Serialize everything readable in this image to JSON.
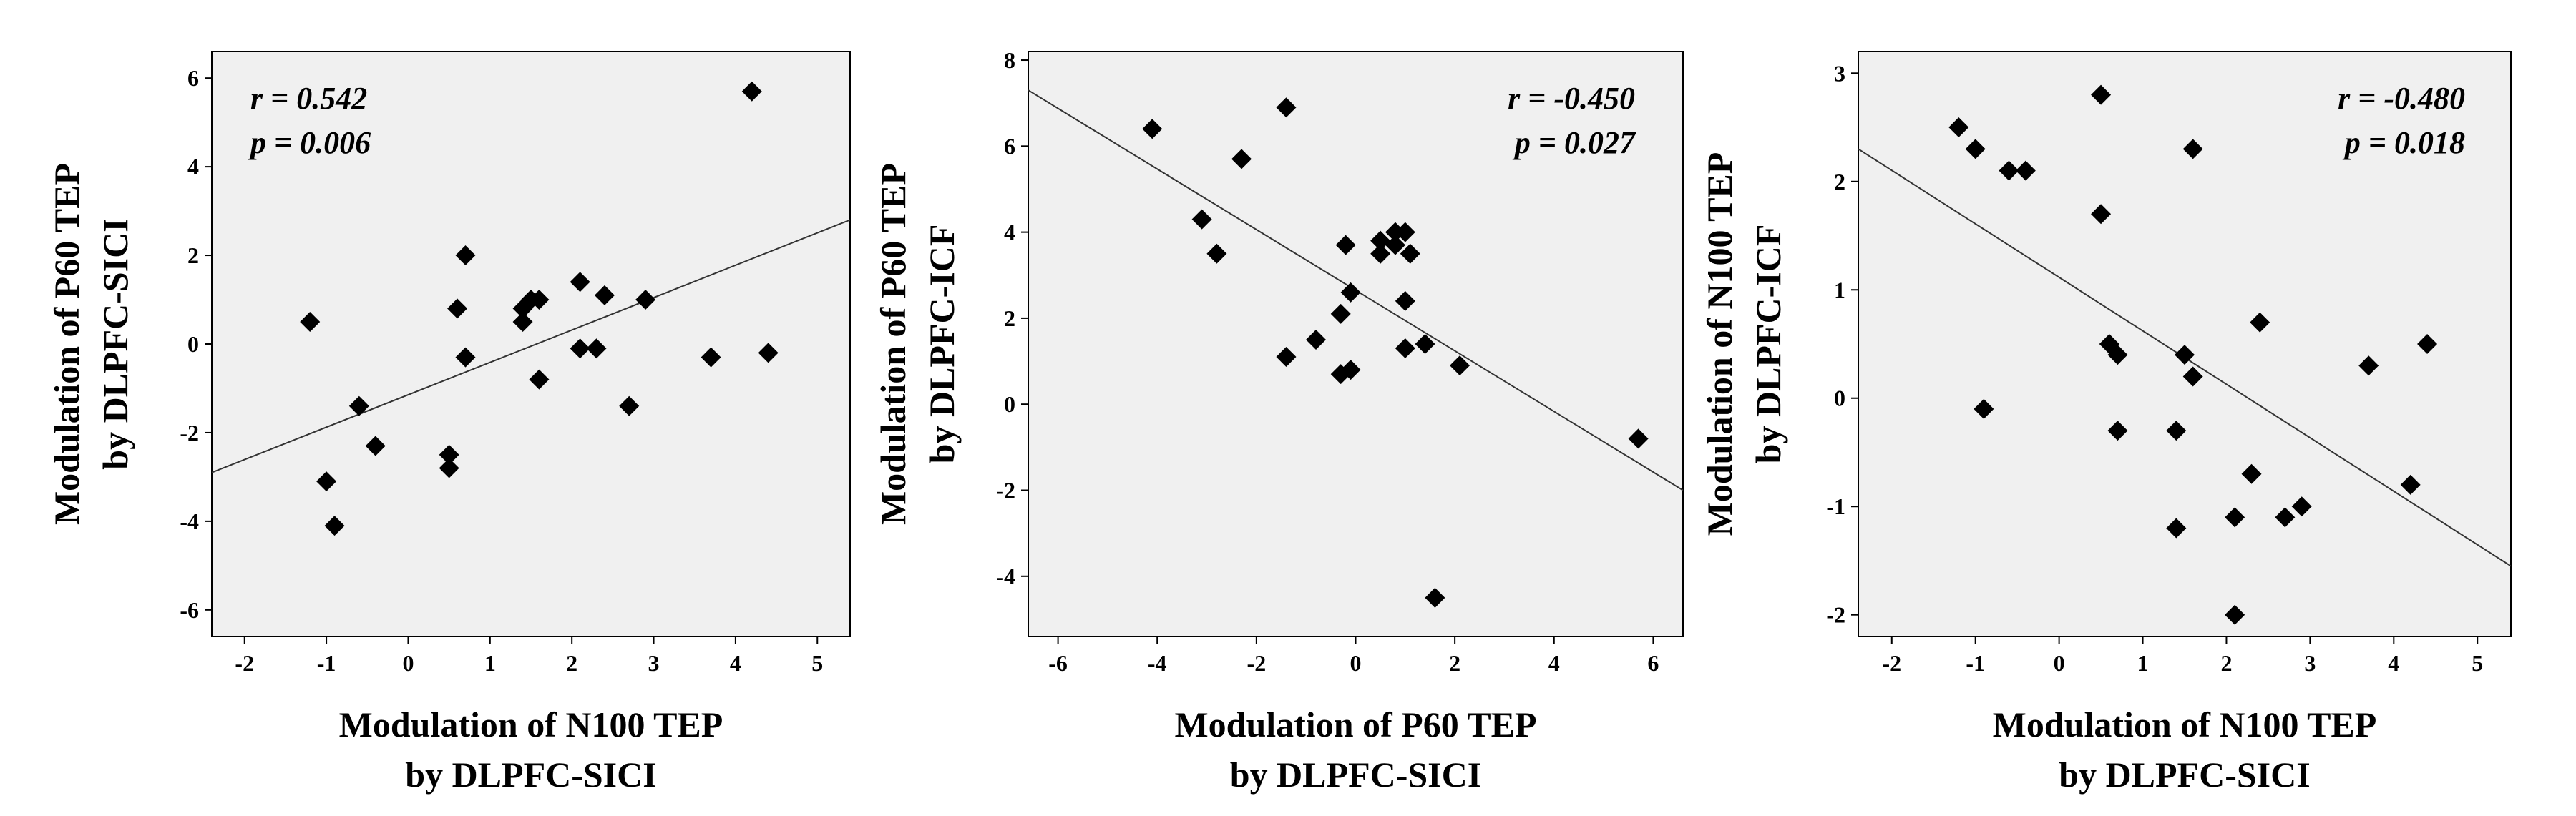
{
  "chart_data": [
    {
      "type": "scatter",
      "title": "",
      "xlabel": [
        "Modulation of N100 TEP",
        "by DLPFC-SICI"
      ],
      "ylabel": [
        "Modulation of P60 TEP",
        "by DLPFC-SICI"
      ],
      "xlim": [
        -2.4,
        5.4
      ],
      "ylim": [
        -6.6,
        6.6
      ],
      "xticks": [
        -2,
        -1,
        0,
        1,
        2,
        3,
        4,
        5
      ],
      "yticks": [
        -6,
        -4,
        -2,
        0,
        2,
        4,
        6
      ],
      "grid": false,
      "annotations": [
        "r = 0.542",
        "p = 0.006"
      ],
      "fit_line": [
        [
          -2.4,
          -2.9
        ],
        [
          5.4,
          2.8
        ]
      ],
      "points": [
        [
          -1.2,
          0.5
        ],
        [
          -1.0,
          -3.1
        ],
        [
          -0.9,
          -4.1
        ],
        [
          -0.6,
          -1.4
        ],
        [
          -0.4,
          -2.3
        ],
        [
          0.5,
          -2.5
        ],
        [
          0.5,
          -2.8
        ],
        [
          0.6,
          0.8
        ],
        [
          0.7,
          2.0
        ],
        [
          0.7,
          -0.3
        ],
        [
          1.4,
          0.8
        ],
        [
          1.4,
          0.5
        ],
        [
          1.5,
          1.0
        ],
        [
          1.6,
          1.0
        ],
        [
          1.6,
          -0.8
        ],
        [
          2.1,
          1.4
        ],
        [
          2.1,
          -0.1
        ],
        [
          2.3,
          -0.1
        ],
        [
          2.4,
          1.1
        ],
        [
          2.7,
          -1.4
        ],
        [
          2.9,
          1.0
        ],
        [
          3.7,
          -0.3
        ],
        [
          4.2,
          5.7
        ],
        [
          4.4,
          -0.2
        ]
      ]
    },
    {
      "type": "scatter",
      "title": "",
      "xlabel": [
        "Modulation of P60 TEP",
        "by DLPFC-SICI"
      ],
      "ylabel": [
        "Modulation of P60 TEP",
        "by DLPFC-ICF"
      ],
      "xlim": [
        -6.6,
        6.6
      ],
      "ylim": [
        -5.4,
        8.2
      ],
      "xticks": [
        -6,
        -4,
        -2,
        0,
        2,
        4,
        6
      ],
      "yticks": [
        -4,
        -2,
        0,
        2,
        4,
        6,
        8
      ],
      "grid": false,
      "annotations": [
        "r = -0.450",
        "p = 0.027"
      ],
      "fit_line": [
        [
          -6.6,
          7.3
        ],
        [
          6.6,
          -2.0
        ]
      ],
      "points": [
        [
          -4.1,
          6.4
        ],
        [
          -3.1,
          4.3
        ],
        [
          -2.8,
          3.5
        ],
        [
          -2.3,
          5.7
        ],
        [
          -1.4,
          6.9
        ],
        [
          -1.4,
          1.1
        ],
        [
          -0.8,
          1.5
        ],
        [
          -0.3,
          0.7
        ],
        [
          -0.3,
          2.1
        ],
        [
          -0.2,
          3.7
        ],
        [
          -0.1,
          0.8
        ],
        [
          -0.1,
          2.6
        ],
        [
          0.5,
          3.5
        ],
        [
          0.5,
          3.8
        ],
        [
          0.8,
          3.7
        ],
        [
          0.8,
          4.0
        ],
        [
          1.0,
          4.0
        ],
        [
          1.0,
          2.4
        ],
        [
          1.0,
          1.3
        ],
        [
          1.1,
          3.5
        ],
        [
          1.4,
          1.4
        ],
        [
          1.6,
          -4.5
        ],
        [
          2.1,
          0.9
        ],
        [
          5.7,
          -0.8
        ]
      ]
    },
    {
      "type": "scatter",
      "title": "",
      "xlabel": [
        "Modulation of N100 TEP",
        "by DLPFC-SICI"
      ],
      "ylabel": [
        "Modulation of N100 TEP",
        "by DLPFC-ICF"
      ],
      "xlim": [
        -2.4,
        5.4
      ],
      "ylim": [
        -2.2,
        3.2
      ],
      "xticks": [
        -2,
        -1,
        0,
        1,
        2,
        3,
        4,
        5
      ],
      "yticks": [
        -2,
        -1,
        0,
        1,
        2,
        3
      ],
      "grid": false,
      "annotations": [
        "r = -0.480",
        "p = 0.018"
      ],
      "fit_line": [
        [
          -2.4,
          2.3
        ],
        [
          5.4,
          -1.55
        ]
      ],
      "points": [
        [
          -1.2,
          2.5
        ],
        [
          -1.0,
          2.3
        ],
        [
          -0.9,
          -0.1
        ],
        [
          -0.6,
          2.1
        ],
        [
          -0.4,
          2.1
        ],
        [
          0.5,
          2.8
        ],
        [
          0.5,
          1.7
        ],
        [
          0.6,
          0.5
        ],
        [
          0.7,
          0.4
        ],
        [
          0.7,
          -0.3
        ],
        [
          1.4,
          -0.3
        ],
        [
          1.4,
          -1.2
        ],
        [
          1.5,
          0.4
        ],
        [
          1.6,
          0.2
        ],
        [
          1.6,
          2.3
        ],
        [
          2.1,
          -1.1
        ],
        [
          2.1,
          -2.0
        ],
        [
          2.3,
          -0.7
        ],
        [
          2.4,
          0.7
        ],
        [
          2.7,
          -1.1
        ],
        [
          2.9,
          -1.0
        ],
        [
          3.7,
          0.3
        ],
        [
          4.2,
          -0.8
        ],
        [
          4.4,
          0.5
        ]
      ]
    }
  ]
}
